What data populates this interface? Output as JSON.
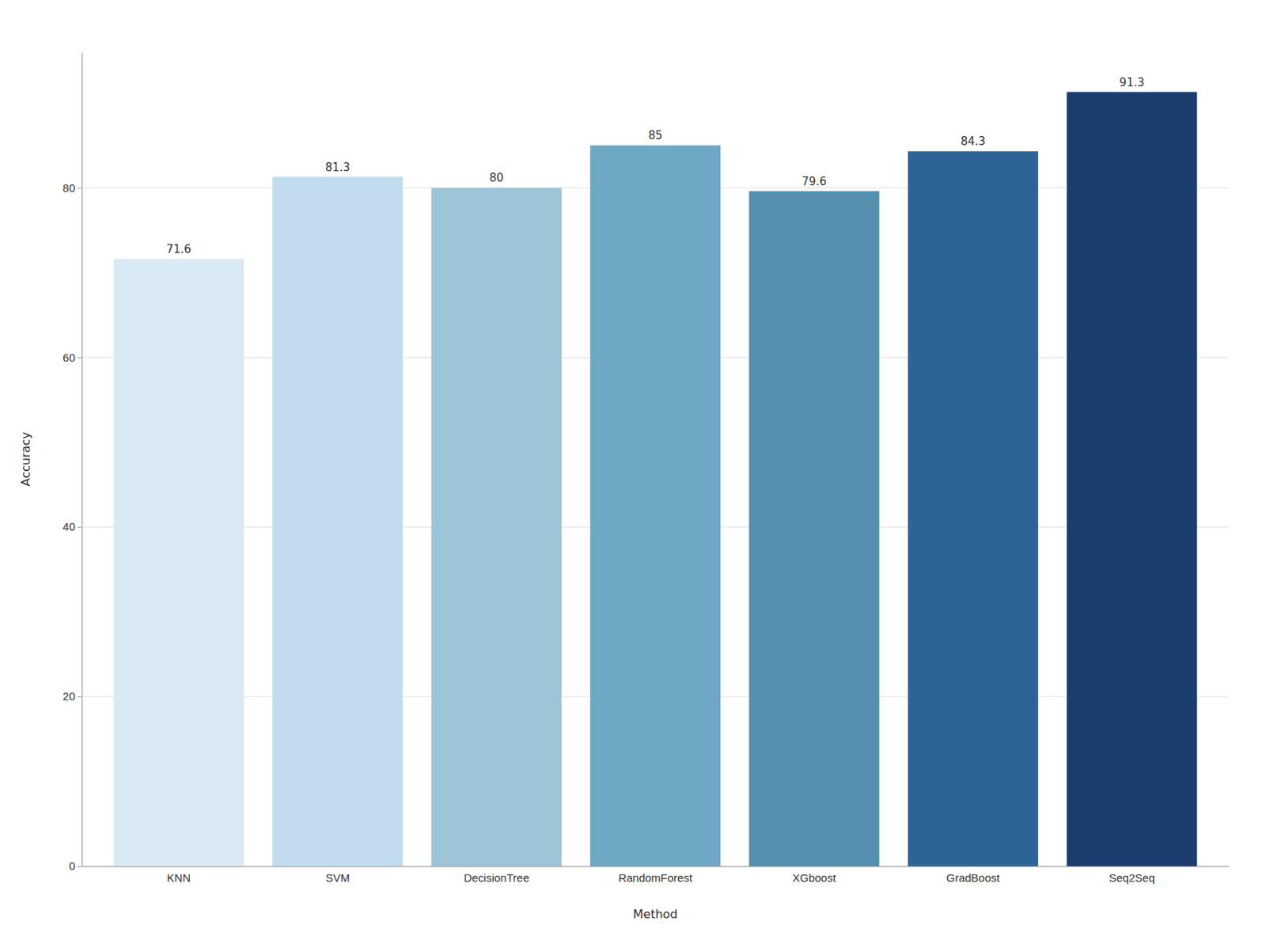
{
  "chart_data": {
    "type": "bar",
    "categories": [
      "KNN",
      "SVM",
      "DecisionTree",
      "RandomForest",
      "XGboost",
      "GradBoost",
      "Seq2Seq"
    ],
    "values": [
      71.6,
      81.3,
      80,
      85,
      79.6,
      84.3,
      91.3
    ],
    "colors": [
      "#daeaf5",
      "#c2dced",
      "#9ec4d8",
      "#6fa8c4",
      "#5590b0",
      "#2d6496",
      "#1b3d6e"
    ],
    "xlabel": "Method",
    "ylabel": "Accuracy",
    "ylim": [
      0,
      96
    ],
    "yticks": [
      0,
      20,
      40,
      60,
      80
    ],
    "grid": true,
    "data_labels": true
  }
}
